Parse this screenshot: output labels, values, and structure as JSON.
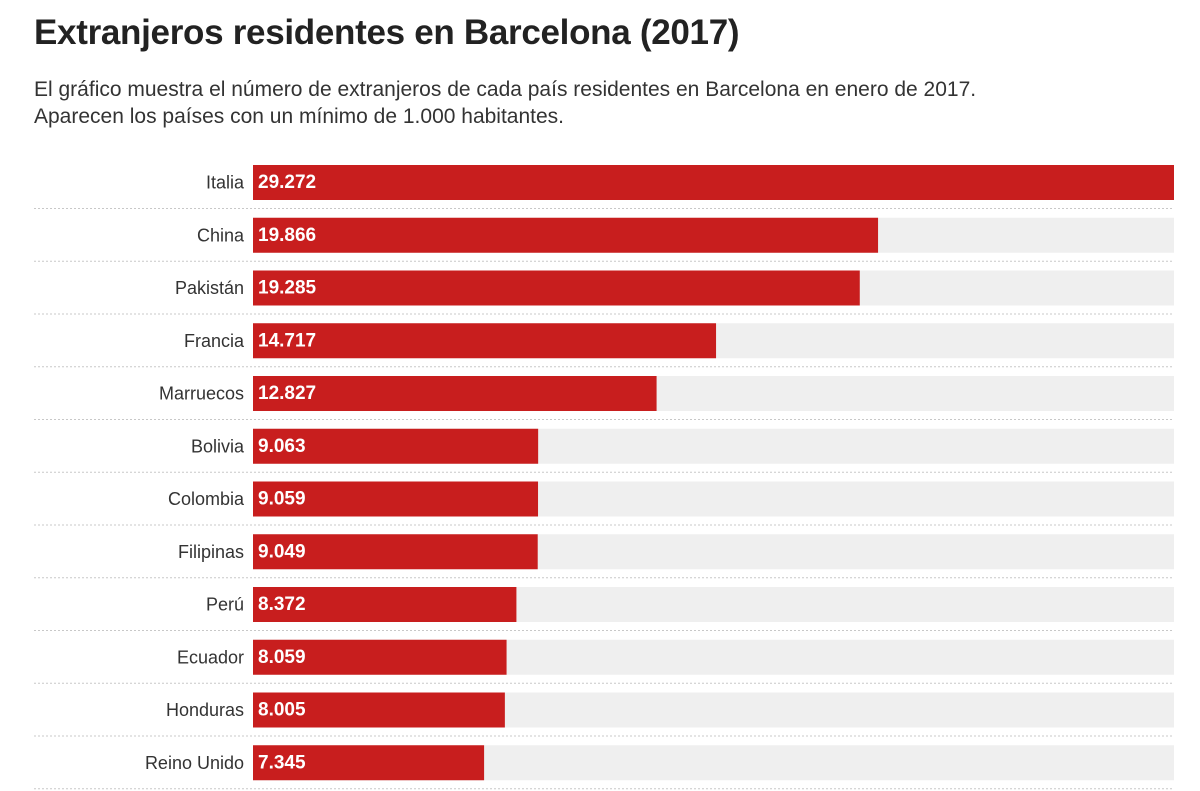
{
  "title": "Extranjeros residentes en Barcelona (2017)",
  "subtitle_line1": "El gráfico muestra el número de extranjeros de cada país residentes en Barcelona en enero de 2017.",
  "subtitle_line2": "Aparecen los países con un mínimo de 1.000 habitantes.",
  "chart_data": {
    "type": "bar",
    "orientation": "horizontal",
    "title": "Extranjeros residentes en Barcelona (2017)",
    "subtitle": "El gráfico muestra el número de extranjeros de cada país residentes en Barcelona en enero de 2017. Aparecen los países con un mínimo de 1.000 habitantes.",
    "xlabel": "",
    "ylabel": "",
    "xlim": [
      0,
      29272
    ],
    "grid": false,
    "categories": [
      "Italia",
      "China",
      "Pakistán",
      "Francia",
      "Marruecos",
      "Bolivia",
      "Colombia",
      "Filipinas",
      "Perú",
      "Ecuador",
      "Honduras",
      "Reino Unido"
    ],
    "values": [
      29272,
      19866,
      19285,
      14717,
      12827,
      9063,
      9059,
      9049,
      8372,
      8059,
      8005,
      7345
    ],
    "labels": [
      "29.272",
      "19.866",
      "19.285",
      "14.717",
      "12.827",
      "9.063",
      "9.059",
      "9.049",
      "8.372",
      "8.059",
      "8.005",
      "7.345"
    ],
    "colors": {
      "bar": "#c81e1e",
      "track": "#efefef",
      "value_text": "#ffffff",
      "category_text": "#333333",
      "separator": "#c8c8c8"
    }
  }
}
